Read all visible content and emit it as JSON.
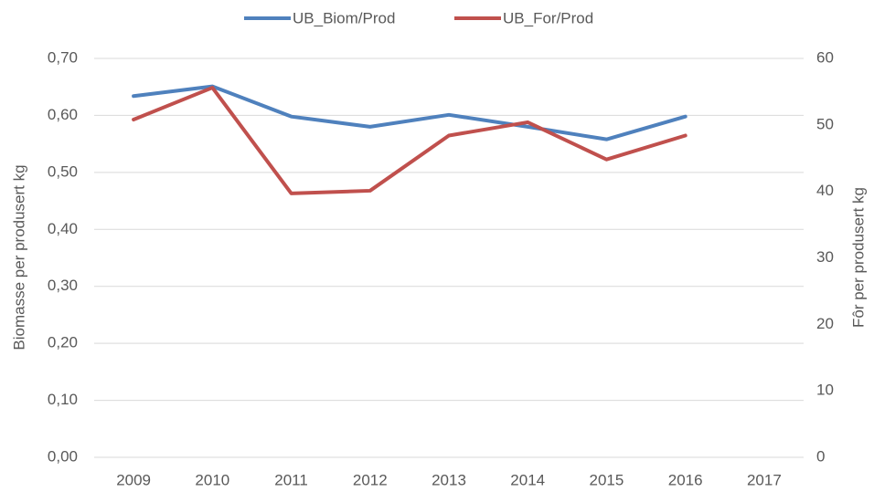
{
  "chart_data": {
    "type": "line",
    "categories": [
      "2009",
      "2010",
      "2011",
      "2012",
      "2013",
      "2014",
      "2015",
      "2016",
      "2017"
    ],
    "y_label": "Biomasse per produsert kg",
    "y2_label": "Fôr per produsert kg",
    "ylim": [
      0,
      0.7
    ],
    "yticks": [
      {
        "value": 0,
        "label": "0,00"
      },
      {
        "value": 0.1,
        "label": "0,10"
      },
      {
        "value": 0.2,
        "label": "0,20"
      },
      {
        "value": 0.3,
        "label": "0,30"
      },
      {
        "value": 0.4,
        "label": "0,40"
      },
      {
        "value": 0.5,
        "label": "0,50"
      },
      {
        "value": 0.6,
        "label": "0,60"
      },
      {
        "value": 0.7,
        "label": "0,70"
      }
    ],
    "y2lim": [
      0,
      60
    ],
    "y2ticks": [
      0,
      10,
      20,
      30,
      40,
      50,
      60
    ],
    "grid": true,
    "legend": "top",
    "series": [
      {
        "name": "UB_Biom/Prod",
        "color": "#4f81bd",
        "values": [
          0.634,
          0.651,
          0.598,
          0.58,
          0.601,
          0.58,
          0.558,
          0.598,
          null
        ]
      },
      {
        "name": "UB_For/Prod",
        "color": "#c0504d",
        "axis": "y2",
        "values": [
          50.8,
          55.6,
          39.7,
          40.1,
          48.4,
          50.4,
          44.8,
          48.4,
          null
        ]
      }
    ]
  }
}
